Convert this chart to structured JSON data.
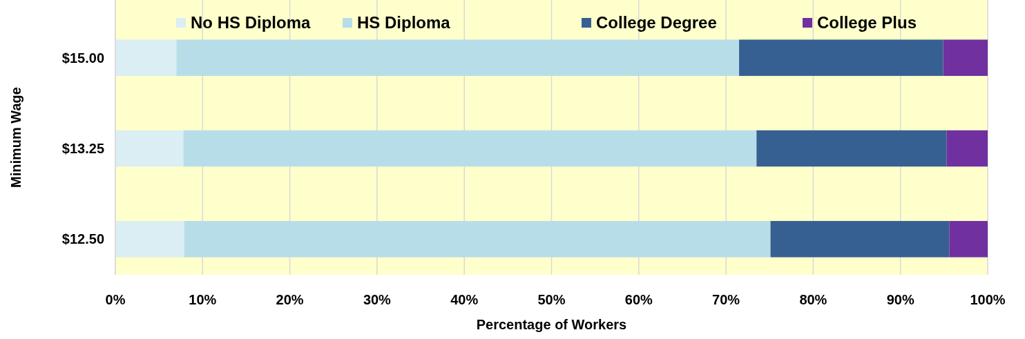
{
  "chart_data": {
    "type": "bar",
    "orientation": "horizontal",
    "stacked": true,
    "xlabel": "Percentage of Workers",
    "ylabel": "Minimum Wage",
    "categories": [
      "$15.00",
      "$13.25",
      "$12.50"
    ],
    "series": [
      {
        "name": "No HS Diploma",
        "color": "#daeef3",
        "values": [
          7.0,
          7.8,
          7.9
        ]
      },
      {
        "name": "HS Diploma",
        "color": "#b7dde8",
        "values": [
          64.5,
          65.7,
          67.2
        ]
      },
      {
        "name": "College Degree",
        "color": "#366092",
        "values": [
          23.4,
          21.8,
          20.5
        ]
      },
      {
        "name": "College Plus",
        "color": "#7030a0",
        "values": [
          5.1,
          4.7,
          4.4
        ]
      }
    ],
    "xlim": [
      0,
      100
    ],
    "xticks": [
      {
        "value": 0,
        "label": "0%"
      },
      {
        "value": 10,
        "label": "10%"
      },
      {
        "value": 20,
        "label": "20%"
      },
      {
        "value": 30,
        "label": "30%"
      },
      {
        "value": 40,
        "label": "40%"
      },
      {
        "value": 50,
        "label": "50%"
      },
      {
        "value": 60,
        "label": "60%"
      },
      {
        "value": 70,
        "label": "70%"
      },
      {
        "value": 80,
        "label": "80%"
      },
      {
        "value": 90,
        "label": "90%"
      },
      {
        "value": 100,
        "label": "100%"
      }
    ],
    "grid": "x",
    "legend": "top"
  }
}
